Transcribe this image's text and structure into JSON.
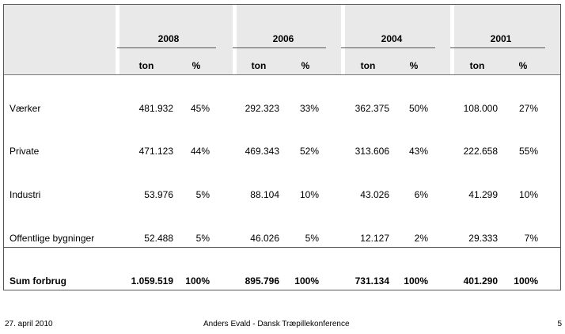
{
  "table": {
    "years": [
      "2008",
      "2006",
      "2004",
      "2001"
    ],
    "units": [
      {
        "ton": "ton",
        "pct": "%"
      },
      {
        "ton": "ton",
        "pct": "%"
      },
      {
        "ton": "ton",
        "pct": "%"
      },
      {
        "ton": "ton",
        "pct": "%"
      }
    ],
    "rows": [
      {
        "label": "Værker",
        "cells": [
          "481.932",
          "45%",
          "292.323",
          "33%",
          "362.375",
          "50%",
          "108.000",
          "27%"
        ]
      },
      {
        "label": "Private",
        "cells": [
          "471.123",
          "44%",
          "469.343",
          "52%",
          "313.606",
          "43%",
          "222.658",
          "55%"
        ]
      },
      {
        "label": "Industri",
        "cells": [
          "53.976",
          "5%",
          "88.104",
          "10%",
          "43.026",
          "6%",
          "41.299",
          "10%"
        ]
      },
      {
        "label": "Offentlige bygninger",
        "cells": [
          "52.488",
          "5%",
          "46.026",
          "5%",
          "12.127",
          "2%",
          "29.333",
          "7%"
        ]
      }
    ],
    "total": {
      "label": "Sum forbrug",
      "cells": [
        "1.059.519",
        "100%",
        "895.796",
        "100%",
        "731.134",
        "100%",
        "401.290",
        "100%"
      ]
    }
  },
  "footer": {
    "date": "27. april 2010",
    "presenter": "Anders Evald - Dansk Træpillekonference",
    "page": "5"
  }
}
